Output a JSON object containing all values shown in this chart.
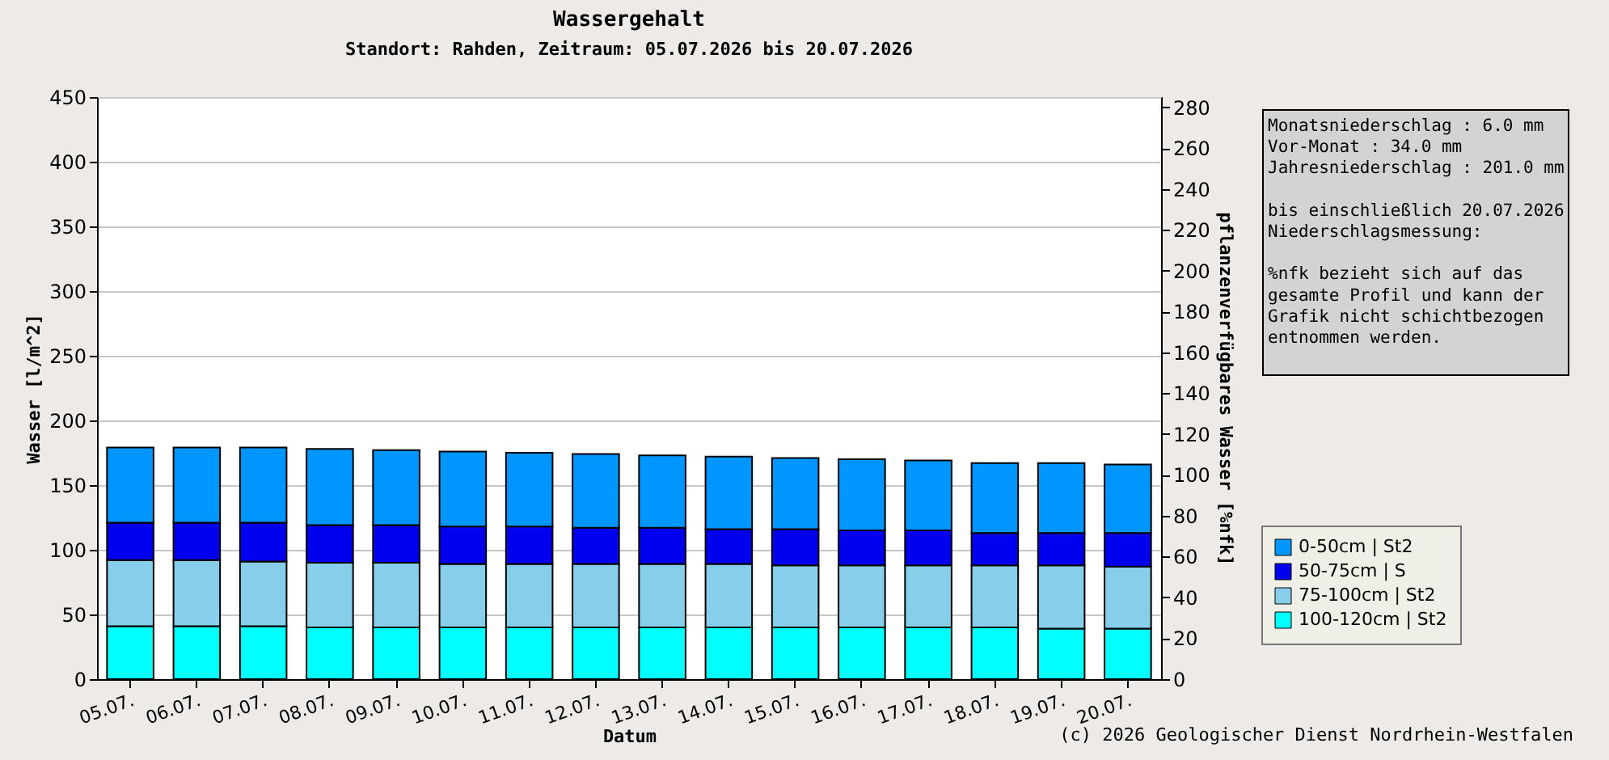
{
  "chart_data": {
    "type": "bar",
    "stacked": true,
    "title": "Wassergehalt",
    "subtitle": "Standort: Rahden, Zeitraum: 05.07.2026 bis 20.07.2026",
    "xlabel": "Datum",
    "ylabel": "Wasser [l/m^2]",
    "y2label": "pflanzenverfügbares Wasser [%nfk]",
    "categories": [
      "05.07.",
      "06.07.",
      "07.07.",
      "08.07.",
      "09.07.",
      "10.07.",
      "11.07.",
      "12.07.",
      "13.07.",
      "14.07.",
      "15.07.",
      "16.07.",
      "17.07.",
      "18.07.",
      "19.07.",
      "20.07."
    ],
    "series": [
      {
        "name": "100-120cm | St2",
        "color": "#00ffff",
        "values": [
          41,
          41,
          41,
          40,
          40,
          40,
          40,
          40,
          40,
          40,
          40,
          40,
          40,
          40,
          39,
          39
        ]
      },
      {
        "name": "75-100cm | St2",
        "color": "#87ceeb",
        "values": [
          51,
          51,
          50,
          50,
          50,
          49,
          49,
          49,
          49,
          49,
          48,
          48,
          48,
          48,
          49,
          48
        ]
      },
      {
        "name": "50-75cm | S",
        "color": "#0000ee",
        "values": [
          29,
          29,
          30,
          29,
          29,
          29,
          29,
          28,
          28,
          27,
          28,
          27,
          27,
          25,
          25,
          26
        ]
      },
      {
        "name": "0-50cm | St2",
        "color": "#0096ff",
        "values": [
          58,
          58,
          58,
          59,
          58,
          58,
          57,
          57,
          56,
          56,
          55,
          55,
          54,
          54,
          54,
          53
        ]
      }
    ],
    "ylim": [
      0,
      450
    ],
    "yticks": [
      0,
      50,
      100,
      150,
      200,
      250,
      300,
      350,
      400,
      450
    ],
    "y2lim": [
      0,
      285
    ],
    "y2ticks": [
      0,
      20,
      40,
      60,
      80,
      100,
      120,
      140,
      160,
      180,
      200,
      220,
      240,
      260,
      280
    ],
    "grid": "y",
    "legend": "right",
    "annotations": [
      "Monatsniederschlag : 6.0 mm",
      "Vor-Monat : 34.0 mm",
      "Jahresniederschlag : 201.0 mm",
      "bis einschließlich 20.07.2026",
      "Niederschlagsmessung:",
      "%nfk bezieht sich auf das",
      "gesamte Profil und kann der",
      "Grafik nicht schichtbezogen",
      "entnommen werden.",
      "(c) 2026 Geologischer Dienst Nordrhein-Westfalen"
    ]
  }
}
